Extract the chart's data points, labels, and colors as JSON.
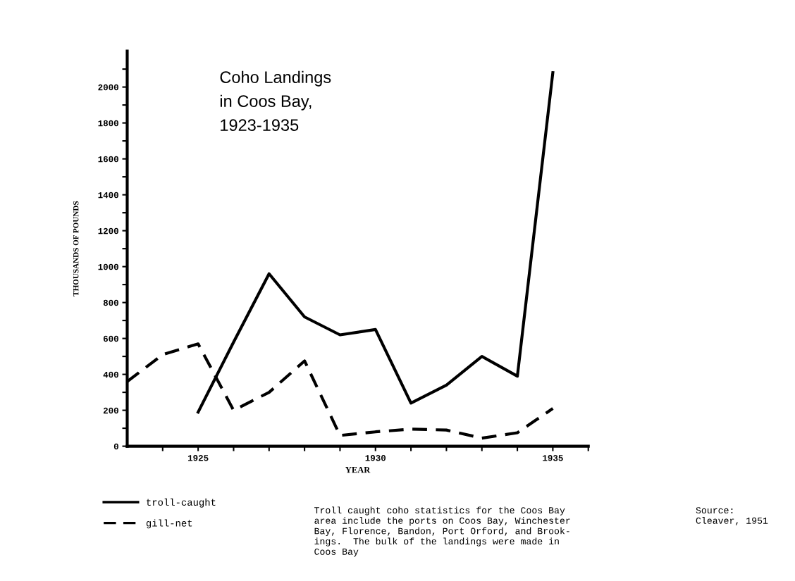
{
  "chart_data": {
    "type": "line",
    "title": "Coho Landings\nin Coos Bay,\n1923-1935",
    "xlabel": "YEAR",
    "ylabel": "THOUSANDS OF POUNDS",
    "series": [
      {
        "name": "troll-caught",
        "color": "#000000",
        "line_style": "solid",
        "x": [
          1925,
          1926,
          1927,
          1928,
          1929,
          1930,
          1931,
          1932,
          1933,
          1934,
          1935
        ],
        "values": [
          190,
          580,
          960,
          720,
          620,
          650,
          240,
          340,
          500,
          390,
          2080
        ]
      },
      {
        "name": "gill-net",
        "color": "#000000",
        "line_style": "dashed",
        "x": [
          1923,
          1924,
          1925,
          1926,
          1927,
          1928,
          1929,
          1930,
          1931,
          1932,
          1933,
          1934,
          1935
        ],
        "values": [
          360,
          510,
          570,
          200,
          300,
          475,
          60,
          80,
          95,
          90,
          45,
          75,
          210
        ]
      }
    ],
    "xlim": [
      1923,
      1936
    ],
    "ylim": [
      0,
      2200
    ],
    "xticks": [
      {
        "value": 1924,
        "label": null
      },
      1925,
      {
        "value": 1926,
        "label": null
      },
      {
        "value": 1927,
        "label": null
      },
      {
        "value": 1928,
        "label": null
      },
      {
        "value": 1929,
        "label": null
      },
      1930,
      {
        "value": 1931,
        "label": null
      },
      {
        "value": 1932,
        "label": null
      },
      {
        "value": 1933,
        "label": null
      },
      {
        "value": 1934,
        "label": null
      },
      1935,
      {
        "value": 1936,
        "label": null
      }
    ],
    "yticks": [
      0,
      {
        "value": 100,
        "label": null
      },
      200,
      {
        "value": 300,
        "label": null
      },
      400,
      {
        "value": 500,
        "label": null
      },
      600,
      {
        "value": 700,
        "label": null
      },
      800,
      {
        "value": 900,
        "label": null
      },
      1000,
      {
        "value": 1100,
        "label": null
      },
      1200,
      {
        "value": 1300,
        "label": null
      },
      1400,
      {
        "value": 1500,
        "label": null
      },
      1600,
      {
        "value": 1700,
        "label": null
      },
      1800,
      {
        "value": 1900,
        "label": null
      },
      2000,
      {
        "value": 2100,
        "label": null
      }
    ],
    "grid": false,
    "legend": "bottom left",
    "marker": "none",
    "annotations": [
      "Troll caught coho statistics for the Coos Bay\narea include the ports on Coos Bay, Winchester\nBay, Florence, Bandon, Port Orford, and Brook-\nings.  The bulk of the landings were made in\nCoos Bay",
      "Source:\nCleaver, 1951"
    ]
  }
}
